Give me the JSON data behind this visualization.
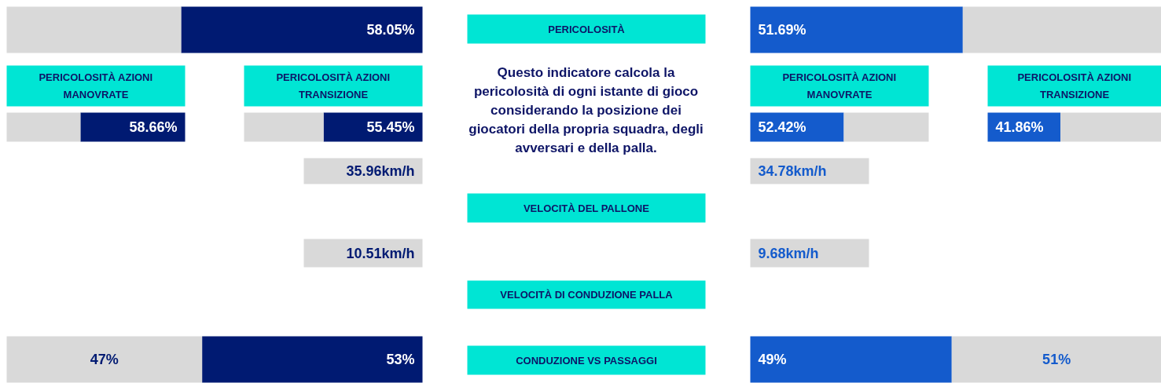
{
  "chart_data": [
    {
      "type": "bar",
      "orientation": "horizontal",
      "stacked": true,
      "categories": [
        null
      ],
      "series": [
        {
          "values": [
            58.05
          ],
          "colors": [
            "#001a72"
          ],
          "value_labels": [
            "58.05%"
          ]
        },
        {
          "values": [
            41.95
          ],
          "color": "#d9d9d9"
        }
      ]
    },
    {
      "type": "other",
      "title": "PERICOLOSITÀ"
    },
    {
      "type": "bar",
      "orientation": "horizontal",
      "stacked": true,
      "categories": [
        null
      ],
      "series": [
        {
          "values": [
            51.69
          ],
          "colors": [
            "#145bcc"
          ],
          "value_labels": [
            "51.69%"
          ]
        },
        {
          "values": [
            48.31
          ],
          "color": "#d9d9d9"
        }
      ]
    },
    {
      "type": "bar",
      "orientation": "horizontal",
      "stacked": true,
      "title": "PERICOLOSITÀ AZIONI MANOVRATE",
      "categories": [
        null
      ],
      "series": [
        {
          "values": [
            58.66
          ],
          "colors": [
            "#001a72"
          ],
          "value_labels": [
            "58.66%"
          ]
        },
        {
          "values": [
            41.34
          ],
          "color": "#d9d9d9"
        }
      ]
    },
    {
      "type": "bar",
      "orientation": "horizontal",
      "stacked": true,
      "title": "PERICOLOSITÀ AZIONI TRANSIZIONE",
      "categories": [
        null
      ],
      "series": [
        {
          "values": [
            55.45
          ],
          "colors": [
            "#001a72"
          ],
          "value_labels": [
            "55.45%"
          ]
        },
        {
          "values": [
            44.55
          ],
          "color": "#d9d9d9"
        }
      ]
    },
    {
      "type": "other",
      "annotations": [
        "Questo indicatore calcola la pericolosità di ogni istante di gioco considerando la posizione dei giocatori della propria squadra, degli avversari e della palla."
      ]
    },
    {
      "type": "bar",
      "orientation": "horizontal",
      "stacked": true,
      "title": "PERICOLOSITÀ AZIONI MANOVRATE",
      "categories": [
        null
      ],
      "series": [
        {
          "values": [
            52.42
          ],
          "colors": [
            "#145bcc"
          ],
          "value_labels": [
            "52.42%"
          ]
        },
        {
          "values": [
            47.58
          ],
          "color": "#d9d9d9"
        }
      ]
    },
    {
      "type": "bar",
      "orientation": "horizontal",
      "stacked": true,
      "title": "PERICOLOSITÀ AZIONI TRANSIZIONE",
      "categories": [
        null
      ],
      "series": [
        {
          "values": [
            41.86
          ],
          "colors": [
            "#145bcc"
          ],
          "value_labels": [
            "41.86%"
          ]
        },
        {
          "values": [
            58.14
          ],
          "color": "#d9d9d9"
        }
      ]
    },
    {
      "type": "other",
      "title": "VELOCITÀ DEL PALLONE",
      "annotations": [
        "35.96km/h",
        "34.78km/h"
      ]
    },
    {
      "type": "other",
      "title": "VELOCITÀ DI CONDUZIONE PALLA",
      "annotations": [
        "10.51km/h",
        "9.68km/h"
      ]
    },
    {
      "type": "bar",
      "orientation": "horizontal",
      "stacked": true,
      "categories": [
        null
      ],
      "series": [
        {
          "values": [
            53
          ],
          "colors": [
            "#001a72"
          ],
          "value_labels": [
            "53%"
          ]
        },
        {
          "values": [
            47
          ],
          "color": "#d9d9d9",
          "value_labels": [
            "47%"
          ]
        }
      ]
    },
    {
      "type": "other",
      "title": "CONDUZIONE VS PASSAGGI"
    },
    {
      "type": "bar",
      "orientation": "horizontal",
      "stacked": true,
      "categories": [
        null
      ],
      "series": [
        {
          "values": [
            49
          ],
          "colors": [
            "#145bcc"
          ],
          "value_labels": [
            "49%"
          ]
        },
        {
          "values": [
            51
          ],
          "color": "#d9d9d9",
          "value_labels": [
            "51%"
          ]
        }
      ]
    }
  ]
}
